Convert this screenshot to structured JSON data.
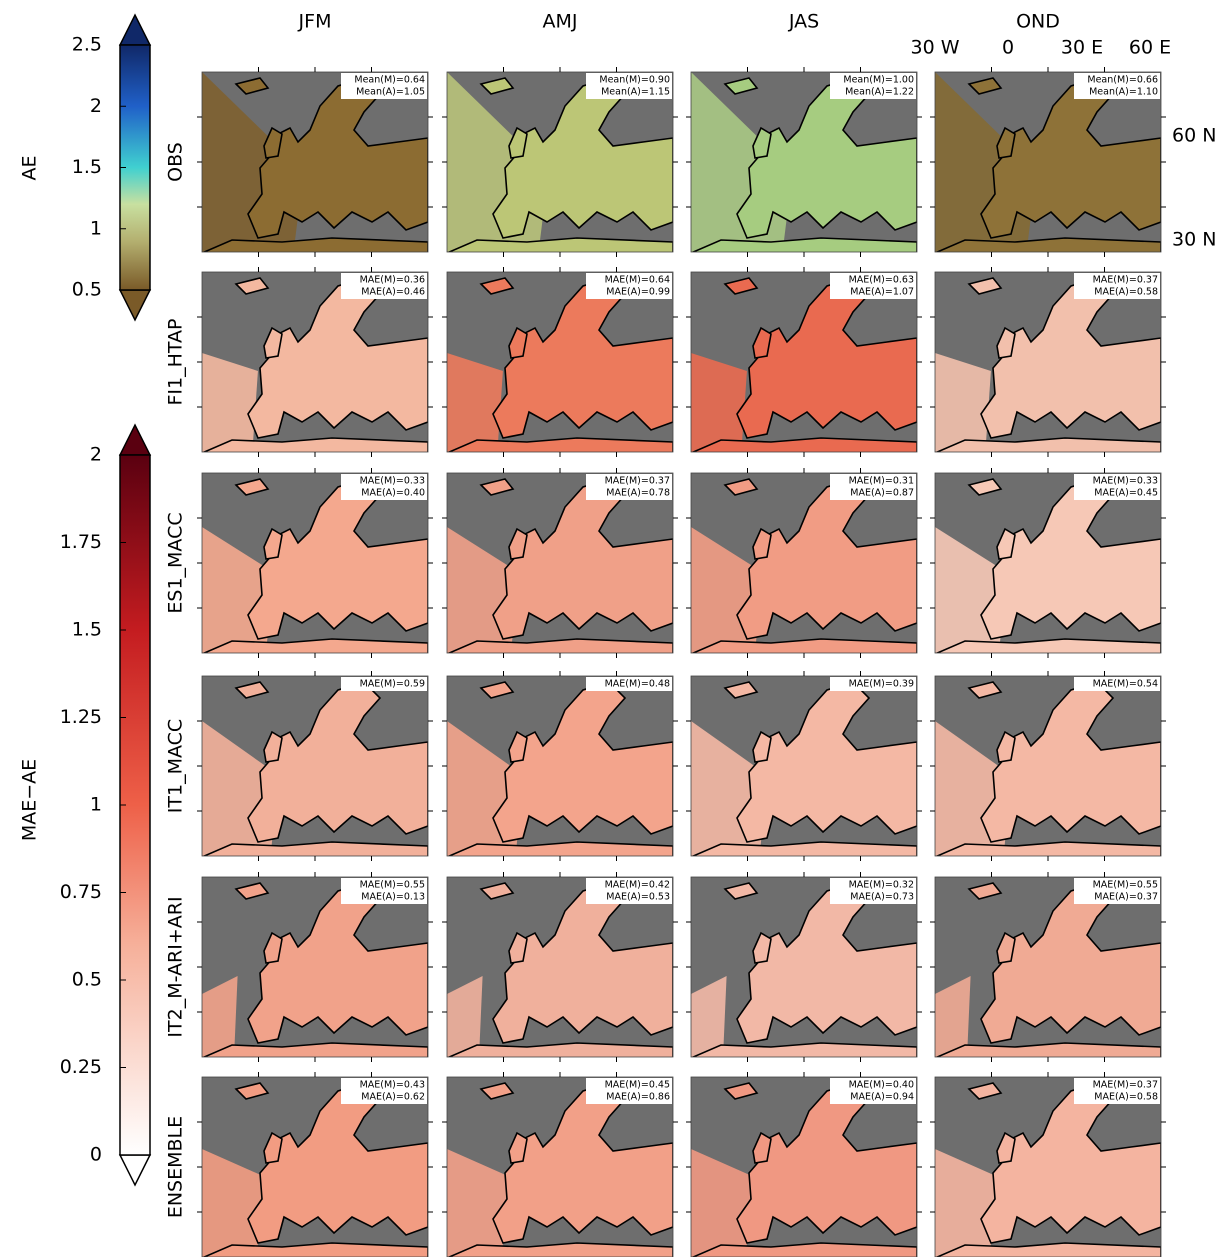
{
  "columns": [
    "JFM",
    "AMJ",
    "JAS",
    "OND"
  ],
  "rows": [
    {
      "label": "OBS",
      "panels": [
        [
          "Mean(M)=0.64",
          "Mean(A)=1.05"
        ],
        [
          "Mean(M)=0.90",
          "Mean(A)=1.15"
        ],
        [
          "Mean(M)=1.00",
          "Mean(A)=1.22"
        ],
        [
          "Mean(M)=0.66",
          "Mean(A)=1.10"
        ]
      ]
    },
    {
      "label": "FI1_HTAP",
      "panels": [
        [
          "MAE(M)=0.36",
          "MAE(A)=0.46"
        ],
        [
          "MAE(M)=0.64",
          "MAE(A)=0.99"
        ],
        [
          "MAE(M)=0.63",
          "MAE(A)=1.07"
        ],
        [
          "MAE(M)=0.37",
          "MAE(A)=0.58"
        ]
      ]
    },
    {
      "label": "ES1_MACC",
      "panels": [
        [
          "MAE(M)=0.33",
          "MAE(A)=0.40"
        ],
        [
          "MAE(M)=0.37",
          "MAE(A)=0.78"
        ],
        [
          "MAE(M)=0.31",
          "MAE(A)=0.87"
        ],
        [
          "MAE(M)=0.33",
          "MAE(A)=0.45"
        ]
      ]
    },
    {
      "label": "IT1_MACC",
      "panels": [
        [
          "MAE(M)=0.59"
        ],
        [
          "MAE(M)=0.48"
        ],
        [
          "MAE(M)=0.39"
        ],
        [
          "MAE(M)=0.54"
        ]
      ]
    },
    {
      "label": "IT2_M-ARI+ARI",
      "panels": [
        [
          "MAE(M)=0.55",
          "MAE(A)=0.13"
        ],
        [
          "MAE(M)=0.42",
          "MAE(A)=0.53"
        ],
        [
          "MAE(M)=0.32",
          "MAE(A)=0.73"
        ],
        [
          "MAE(M)=0.55",
          "MAE(A)=0.37"
        ]
      ]
    },
    {
      "label": "ENSEMBLE",
      "panels": [
        [
          "MAE(M)=0.43",
          "MAE(A)=0.62"
        ],
        [
          "MAE(M)=0.45",
          "MAE(A)=0.86"
        ],
        [
          "MAE(M)=0.40",
          "MAE(A)=0.94"
        ],
        [
          "MAE(M)=0.37",
          "MAE(A)=0.58"
        ]
      ]
    }
  ],
  "map_axes": {
    "lon_labels": [
      "30 W",
      "0",
      "30 E",
      "60 E"
    ],
    "lat_labels": [
      "60 N",
      "30 N"
    ]
  },
  "colorbars": [
    {
      "label": "AE",
      "lim": [
        0.5,
        2.5
      ],
      "ticks": [
        0.5,
        1,
        1.5,
        2,
        2.5
      ]
    },
    {
      "label": "MAE−AE",
      "lim": [
        0,
        2
      ],
      "ticks": [
        0,
        0.25,
        0.5,
        0.75,
        1,
        1.25,
        1.5,
        1.75,
        2
      ]
    }
  ]
}
